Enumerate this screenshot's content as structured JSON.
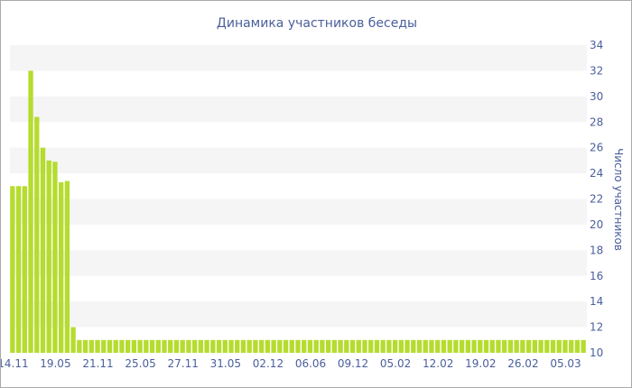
{
  "chart_data": {
    "type": "bar",
    "title": "Динамика участников беседы",
    "xlabel": "",
    "ylabel": "Число участников",
    "ylim": [
      10,
      34
    ],
    "yticks": [
      10,
      12,
      14,
      16,
      18,
      20,
      22,
      24,
      26,
      28,
      30,
      32,
      34
    ],
    "grid": "horizontal alternating bands",
    "bar_color": "#b5dc2e",
    "band_color": "#f5f5f5",
    "xtick_labels": [
      {
        "index": 0,
        "label": "14.11"
      },
      {
        "index": 7,
        "label": "19.05"
      },
      {
        "index": 14,
        "label": "21.11"
      },
      {
        "index": 21,
        "label": "25.05"
      },
      {
        "index": 28,
        "label": "27.11"
      },
      {
        "index": 35,
        "label": "31.05"
      },
      {
        "index": 42,
        "label": "02.12"
      },
      {
        "index": 49,
        "label": "06.06"
      },
      {
        "index": 56,
        "label": "09.12"
      },
      {
        "index": 63,
        "label": "05.02"
      },
      {
        "index": 70,
        "label": "12.02"
      },
      {
        "index": 77,
        "label": "19.02"
      },
      {
        "index": 84,
        "label": "26.02"
      },
      {
        "index": 91,
        "label": "05.03"
      }
    ],
    "values": [
      23,
      23,
      23,
      32,
      28.4,
      26,
      25,
      24.9,
      23.3,
      23.4,
      12,
      11,
      11,
      11,
      11,
      11,
      11,
      11,
      11,
      11,
      11,
      11,
      11,
      11,
      11,
      11,
      11,
      11,
      11,
      11,
      11,
      11,
      11,
      11,
      11,
      11,
      11,
      11,
      11,
      11,
      11,
      11,
      11,
      11,
      11,
      11,
      11,
      11,
      11,
      11,
      11,
      11,
      11,
      11,
      11,
      11,
      11,
      11,
      11,
      11,
      11,
      11,
      11,
      11,
      11,
      11,
      11,
      11,
      11,
      11,
      11,
      11,
      11,
      11,
      11,
      11,
      11,
      11,
      11,
      11,
      11,
      11,
      11,
      11,
      11,
      11,
      11,
      11,
      11,
      11,
      11,
      11,
      11,
      11,
      11
    ]
  }
}
